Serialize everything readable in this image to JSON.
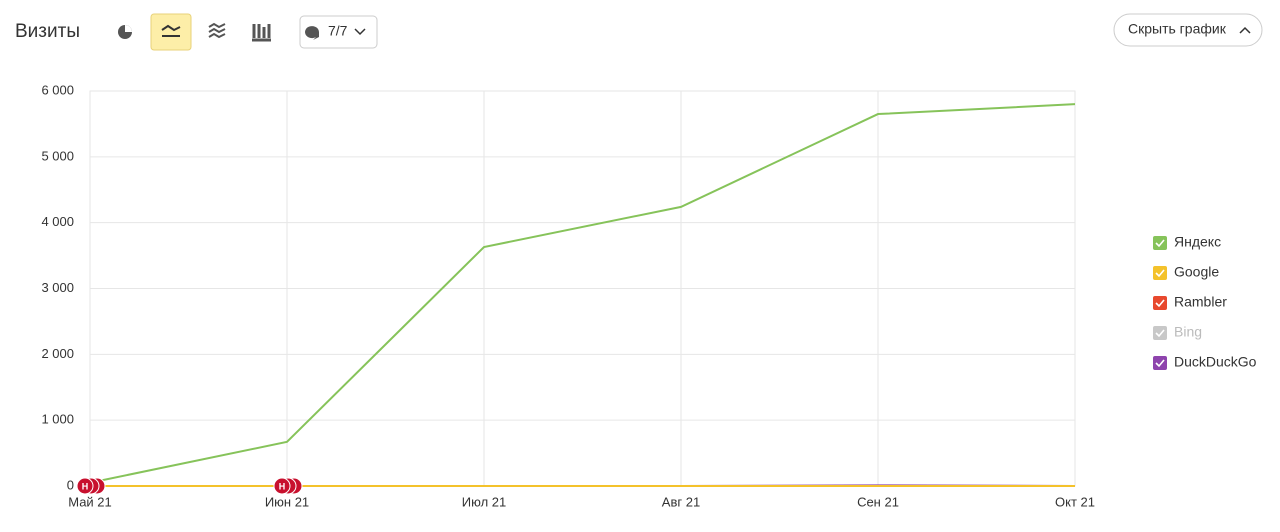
{
  "toolbar": {
    "title": "Визиты",
    "annotations_toggle": "7/7",
    "hide_chart": "Скрыть график"
  },
  "chart_data": {
    "type": "line",
    "categories": [
      "Май 21",
      "Июн 21",
      "Июл 21",
      "Авг 21",
      "Сен 21",
      "Окт 21"
    ],
    "series": [
      {
        "name": "Яндекс",
        "color": "#86c35a",
        "values": [
          50,
          670,
          3630,
          4240,
          5650,
          5800
        ],
        "enabled": true
      },
      {
        "name": "Google",
        "color": "#f4c22b",
        "values": [
          0,
          0,
          0,
          0,
          0,
          0
        ],
        "enabled": true
      },
      {
        "name": "Rambler",
        "color": "#e8492e",
        "values": [
          0,
          0,
          0,
          0,
          0,
          0
        ],
        "enabled": true
      },
      {
        "name": "Bing",
        "color": "#c8c8c8",
        "values": [
          0,
          0,
          0,
          0,
          0,
          0
        ],
        "enabled": false
      },
      {
        "name": "DuckDuckGo",
        "color": "#8e44ad",
        "values": [
          0,
          0,
          0,
          0,
          10,
          0
        ],
        "enabled": true
      }
    ],
    "ylim": [
      0,
      6000
    ],
    "yticks": [
      0,
      {
        "value": 1000,
        "label": "1 000"
      },
      {
        "value": 2000,
        "label": "2 000"
      },
      {
        "value": 3000,
        "label": "3 000"
      },
      {
        "value": 4000,
        "label": "4 000"
      },
      {
        "value": 5000,
        "label": "5 000"
      },
      {
        "value": 6000,
        "label": "6 000"
      }
    ],
    "grid": true,
    "legend": "right",
    "annotations": [
      {
        "x": "Май 21",
        "label": "Н"
      },
      {
        "x": "Июн 21",
        "label": "Н"
      }
    ]
  }
}
